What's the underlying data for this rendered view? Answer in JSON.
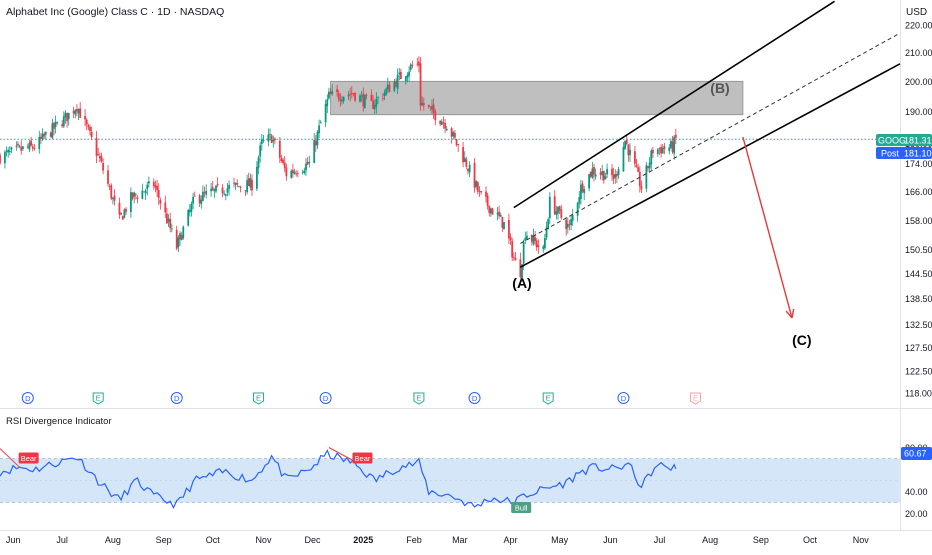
{
  "header": {
    "title": "Alphabet Inc (Google) Class C · 1D · NASDAQ",
    "currency": "USD"
  },
  "colors": {
    "up": "#089981",
    "down": "#f23645",
    "rsi_line": "#2962ff",
    "rsi_band": "#cfe3f7",
    "zone": "#a6a6a6",
    "price_label": "#22ab94",
    "post_label": "#2962ff",
    "arrow": "#e33a3a",
    "bear": "#f23645",
    "bull": "#4f9e86"
  },
  "icons": [
    "dividend-icon",
    "earnings-icon"
  ],
  "price_axis": {
    "scale": "log",
    "ticks": [
      "220.00",
      "210.00",
      "200.00",
      "190.00",
      "180.00",
      "174.00",
      "166.00",
      "158.00",
      "150.50",
      "144.50",
      "138.50",
      "132.50",
      "127.50",
      "122.50",
      "118.00"
    ],
    "last_label_ticker": "GOOG",
    "last_price": "181.31",
    "post_label": "Post",
    "post_price": "181.10"
  },
  "time_axis": {
    "labels": [
      "Jun",
      "Jul",
      "Aug",
      "Sep",
      "Oct",
      "Nov",
      "Dec",
      "2025",
      "Feb",
      "Mar",
      "Apr",
      "May",
      "Jun",
      "Jul",
      "Aug",
      "Sep",
      "Oct",
      "Nov"
    ]
  },
  "events": [
    {
      "type": "D",
      "date": "2024-06-10"
    },
    {
      "type": "E",
      "date": "2024-07-23"
    },
    {
      "type": "D",
      "date": "2024-09-09"
    },
    {
      "type": "E",
      "date": "2024-10-29"
    },
    {
      "type": "D",
      "date": "2024-12-09"
    },
    {
      "type": "E",
      "date": "2025-02-04"
    },
    {
      "type": "D",
      "date": "2025-03-10"
    },
    {
      "type": "E",
      "date": "2025-04-24"
    },
    {
      "type": "D",
      "date": "2025-06-09"
    },
    {
      "type": "E",
      "date": "2025-07-23"
    }
  ],
  "annotations": {
    "wave_a": "(A)",
    "wave_b": "(B)",
    "wave_c": "(C)"
  },
  "rsi": {
    "title": "RSI Divergence Indicator",
    "ticks": [
      "80.00",
      "40.00",
      "20.00"
    ],
    "last_value": "60.67",
    "band": [
      30,
      70
    ],
    "signals": [
      {
        "label": "Bear",
        "date": "2024-06-05"
      },
      {
        "label": "Bear",
        "date": "2024-12-26"
      },
      {
        "label": "Bull",
        "date": "2025-04-02"
      }
    ]
  },
  "chart_data": {
    "type": "candlestick",
    "symbol": "GOOG",
    "interval": "1D",
    "x_range": [
      "2024-05-24",
      "2025-11-25"
    ],
    "y_range": [
      114,
      228
    ],
    "y_scale": "log",
    "price_path": [
      [
        "2024-05-24",
        176
      ],
      [
        "2024-06-05",
        178
      ],
      [
        "2024-06-14",
        179
      ],
      [
        "2024-07-05",
        189
      ],
      [
        "2024-07-10",
        192
      ],
      [
        "2024-07-24",
        175
      ],
      [
        "2024-08-05",
        158
      ],
      [
        "2024-08-12",
        164
      ],
      [
        "2024-08-26",
        168
      ],
      [
        "2024-09-09",
        151
      ],
      [
        "2024-09-20",
        164
      ],
      [
        "2024-10-10",
        167
      ],
      [
        "2024-10-25",
        168
      ],
      [
        "2024-10-31",
        180
      ],
      [
        "2024-11-06",
        182
      ],
      [
        "2024-11-15",
        171
      ],
      [
        "2024-11-29",
        174
      ],
      [
        "2024-12-11",
        195
      ],
      [
        "2024-12-26",
        196
      ],
      [
        "2025-01-06",
        192
      ],
      [
        "2025-01-30",
        205
      ],
      [
        "2025-02-04",
        206
      ],
      [
        "2025-02-05",
        193
      ],
      [
        "2025-02-21",
        186
      ],
      [
        "2025-03-06",
        173
      ],
      [
        "2025-03-13",
        165
      ],
      [
        "2025-03-28",
        157
      ],
      [
        "2025-04-04",
        147
      ],
      [
        "2025-04-07",
        145
      ],
      [
        "2025-04-10",
        155
      ],
      [
        "2025-04-21",
        150
      ],
      [
        "2025-04-25",
        163
      ],
      [
        "2025-05-07",
        156
      ],
      [
        "2025-05-14",
        167
      ],
      [
        "2025-05-21",
        172
      ],
      [
        "2025-06-04",
        170
      ],
      [
        "2025-06-10",
        181
      ],
      [
        "2025-06-20",
        167
      ],
      [
        "2025-06-27",
        178
      ],
      [
        "2025-07-09",
        179
      ],
      [
        "2025-07-11",
        181.31
      ]
    ],
    "resistance_zone": {
      "from": "2024-12-12",
      "to": "2025-08-21",
      "low": 189,
      "high": 200
    },
    "channel": {
      "upper": [
        [
          "2025-04-03",
          161.5
        ],
        [
          "2025-10-16",
          229
        ]
      ],
      "lower": [
        [
          "2025-04-07",
          146
        ],
        [
          "2025-11-25",
          206
        ]
      ],
      "mid_dashed": [
        [
          "2025-04-07",
          152
        ],
        [
          "2025-11-25",
          217
        ]
      ]
    },
    "projection_arrow": [
      [
        "2025-08-21",
        182
      ],
      [
        "2025-09-20",
        134
      ]
    ],
    "wave_labels": [
      {
        "label": "(A)",
        "date": "2025-04-08",
        "price": 141
      },
      {
        "label": "(B)",
        "date": "2025-08-07",
        "price": 196
      },
      {
        "label": "(C)",
        "date": "2025-09-26",
        "price": 128
      }
    ],
    "rsi_series": [
      [
        "2024-05-24",
        58
      ],
      [
        "2024-06-05",
        62
      ],
      [
        "2024-06-14",
        60
      ],
      [
        "2024-07-02",
        68
      ],
      [
        "2024-07-10",
        72
      ],
      [
        "2024-07-24",
        48
      ],
      [
        "2024-08-05",
        32
      ],
      [
        "2024-08-15",
        50
      ],
      [
        "2024-08-26",
        36
      ],
      [
        "2024-09-09",
        28
      ],
      [
        "2024-09-20",
        50
      ],
      [
        "2024-10-08",
        58
      ],
      [
        "2024-10-25",
        50
      ],
      [
        "2024-11-06",
        72
      ],
      [
        "2024-11-15",
        50
      ],
      [
        "2024-11-29",
        60
      ],
      [
        "2024-12-10",
        74
      ],
      [
        "2024-12-26",
        66
      ],
      [
        "2025-01-08",
        50
      ],
      [
        "2025-01-22",
        62
      ],
      [
        "2025-02-04",
        66
      ],
      [
        "2025-02-10",
        40
      ],
      [
        "2025-02-24",
        36
      ],
      [
        "2025-03-10",
        26
      ],
      [
        "2025-03-20",
        34
      ],
      [
        "2025-04-03",
        30
      ],
      [
        "2025-04-09",
        36
      ],
      [
        "2025-04-21",
        42
      ],
      [
        "2025-05-05",
        48
      ],
      [
        "2025-05-14",
        58
      ],
      [
        "2025-05-22",
        62
      ],
      [
        "2025-06-03",
        60
      ],
      [
        "2025-06-12",
        65
      ],
      [
        "2025-06-20",
        44
      ],
      [
        "2025-06-27",
        60
      ],
      [
        "2025-07-03",
        64
      ],
      [
        "2025-07-11",
        60.67
      ]
    ]
  }
}
